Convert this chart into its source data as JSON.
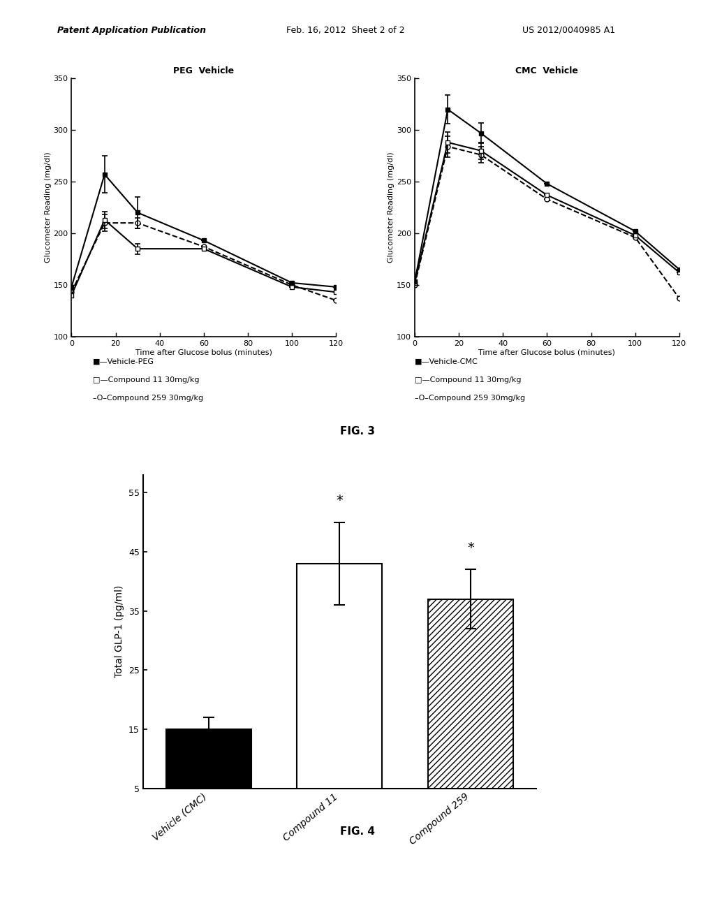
{
  "fig3_title": "FIG. 3",
  "fig4_title": "FIG. 4",
  "header_left": "Patent Application Publication",
  "header_mid": "Feb. 16, 2012  Sheet 2 of 2",
  "header_right": "US 2012/0040985 A1",
  "peg_title": "PEG  Vehicle",
  "cmc_title": "CMC  Vehicle",
  "time_points": [
    0,
    15,
    30,
    60,
    100,
    120
  ],
  "xlim": [
    0,
    120
  ],
  "ylim_line": [
    100,
    350
  ],
  "yticks_line": [
    100,
    150,
    200,
    250,
    300,
    350
  ],
  "xticks_line": [
    0,
    20,
    40,
    60,
    80,
    100,
    120
  ],
  "peg_vehicle": [
    148,
    257,
    220,
    193,
    152,
    148
  ],
  "peg_vehicle_err": [
    0,
    18,
    15,
    0,
    0,
    0
  ],
  "peg_comp11": [
    140,
    213,
    185,
    185,
    148,
    143
  ],
  "peg_comp11_err": [
    0,
    8,
    5,
    0,
    0,
    0
  ],
  "peg_comp259": [
    143,
    210,
    210,
    187,
    150,
    135
  ],
  "peg_comp259_err": [
    0,
    8,
    5,
    0,
    0,
    0
  ],
  "cmc_vehicle": [
    153,
    320,
    297,
    248,
    202,
    165
  ],
  "cmc_vehicle_err": [
    0,
    14,
    10,
    0,
    0,
    0
  ],
  "cmc_comp11": [
    152,
    288,
    280,
    237,
    198,
    162
  ],
  "cmc_comp11_err": [
    0,
    10,
    8,
    0,
    0,
    0
  ],
  "cmc_comp259": [
    150,
    284,
    276,
    233,
    196,
    137
  ],
  "cmc_comp259_err": [
    0,
    10,
    8,
    0,
    0,
    0
  ],
  "xlabel_line": "Time after Glucose bolus (minutes)",
  "ylabel_line": "Glucometer Reading (mg/dl)",
  "legend_peg": [
    "-■-Vehicle-PEG",
    "-□- Compound 11 30mg/kg",
    "-O- Compound 259 30mg/kg"
  ],
  "legend_cmc": [
    "-■-Vehicle-CMC",
    "-□- Compound 11 30mg/kg",
    "-O- Compound 259 30mg/kg"
  ],
  "bar_categories": [
    "Vehicle (CMC)",
    "Compound 11",
    "Compound 259"
  ],
  "bar_values": [
    15,
    43,
    37
  ],
  "bar_errors": [
    2.0,
    7.0,
    5.0
  ],
  "bar_ylabel": "Total GLP-1 (pg/ml)",
  "bar_yticks": [
    5,
    15,
    25,
    35,
    45,
    55
  ],
  "bar_ylim": [
    5,
    58
  ],
  "bar_significance": [
    false,
    true,
    true
  ],
  "bg_color": "#ffffff",
  "font_size_header": 9,
  "font_size_title": 9,
  "font_size_axis": 8,
  "font_size_tick": 8,
  "font_size_legend": 8,
  "font_size_fig": 11
}
